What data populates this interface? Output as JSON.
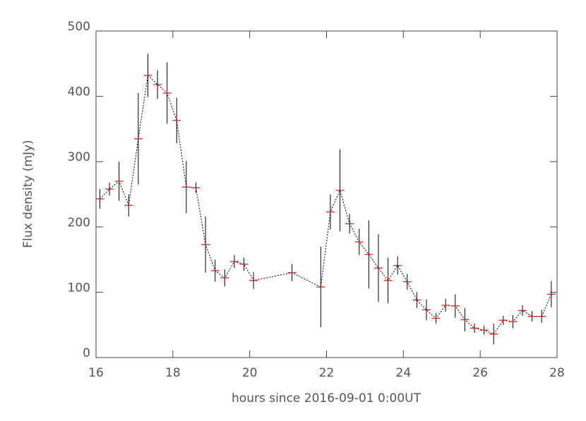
{
  "chart_data": {
    "type": "scatter",
    "xlabel": "hours since 2016-09-01 0:00UT",
    "ylabel": "Flux density (mJy)",
    "x": [
      16.1,
      16.35,
      16.6,
      16.85,
      17.1,
      17.35,
      17.6,
      17.85,
      18.1,
      18.35,
      18.6,
      18.85,
      19.1,
      19.35,
      19.6,
      19.85,
      20.1,
      21.1,
      21.85,
      22.1,
      22.35,
      22.6,
      22.85,
      23.1,
      23.35,
      23.6,
      23.85,
      24.1,
      24.35,
      24.6,
      24.85,
      25.1,
      25.35,
      25.6,
      25.85,
      26.1,
      26.35,
      26.6,
      26.85,
      27.1,
      27.35,
      27.6,
      27.85
    ],
    "values": [
      243,
      258,
      270,
      233,
      335,
      432,
      418,
      405,
      363,
      261,
      260,
      173,
      133,
      122,
      147,
      143,
      118,
      130,
      108,
      223,
      256,
      205,
      177,
      158,
      137,
      118,
      141,
      116,
      88,
      73,
      60,
      80,
      79,
      58,
      45,
      42,
      36,
      57,
      55,
      72,
      63,
      63,
      97
    ],
    "errors": [
      15,
      10,
      30,
      17,
      70,
      33,
      22,
      47,
      35,
      40,
      8,
      43,
      17,
      13,
      10,
      10,
      13,
      13,
      62,
      27,
      63,
      15,
      20,
      52,
      52,
      35,
      14,
      12,
      12,
      16,
      8,
      10,
      18,
      18,
      7,
      7,
      16,
      7,
      10,
      8,
      8,
      10,
      20
    ],
    "marker_color": "#e0201b",
    "error_color": "#000000",
    "line_color": "#000000",
    "line_style": "dotted",
    "xlim": [
      16,
      28
    ],
    "xticks": [
      16,
      18,
      20,
      22,
      24,
      26,
      28
    ],
    "ylim": [
      0,
      500
    ],
    "yticks": [
      0,
      100,
      200,
      300,
      400,
      500
    ]
  }
}
